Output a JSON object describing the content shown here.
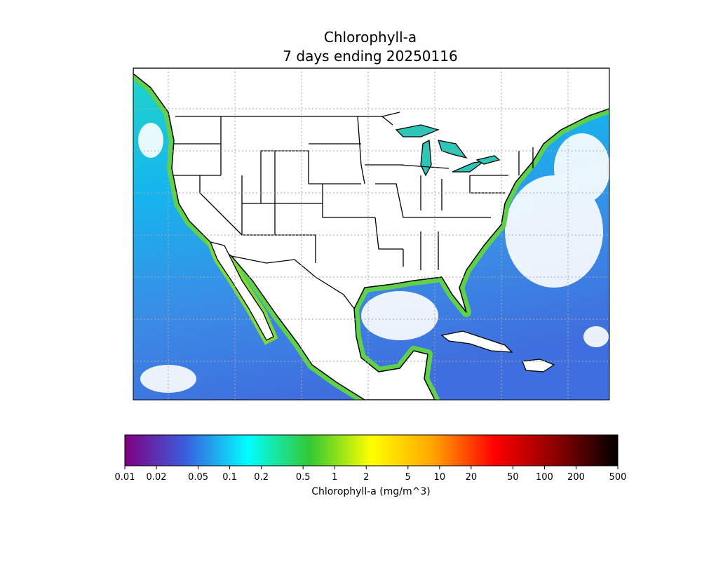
{
  "title": "Chlorophyll-a",
  "subtitle": "7 days ending 20250116",
  "colorbar": {
    "label": "Chlorophyll-a (mg/m^3)",
    "scale": "log",
    "lim": [
      0.01,
      500
    ],
    "ticks": [
      0.01,
      0.02,
      0.05,
      0.1,
      0.2,
      0.5,
      1,
      2,
      5,
      10,
      20,
      50,
      100,
      200,
      500
    ],
    "colors": [
      "#800080",
      "#3a5fe0",
      "#00ffff",
      "#33c833",
      "#ffff00",
      "#ffa500",
      "#ff0000",
      "#8b0000",
      "#000000"
    ]
  }
}
